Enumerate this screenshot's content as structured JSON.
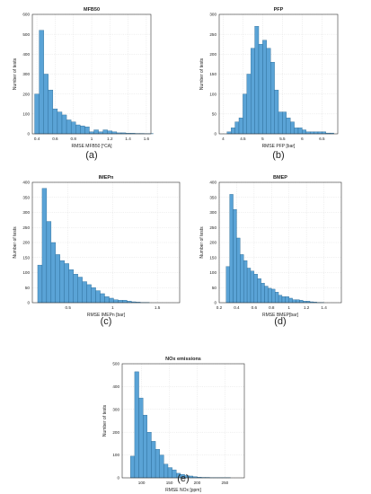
{
  "figure": {
    "bar_color": "#5aa3d6",
    "bar_edge_color": "#1f5f8a"
  },
  "chart_data": [
    {
      "id": "a",
      "caption": "(a)",
      "type": "bar",
      "title": "MFB50",
      "xlabel": "RMSE MFB50 [°CA]",
      "ylabel": "Number of tests",
      "xlim": [
        0.35,
        1.65
      ],
      "ylim": [
        0,
        600
      ],
      "xticks": [
        0.4,
        0.6,
        0.8,
        1,
        1.2,
        1.4,
        1.6
      ],
      "xtick_labels": [
        "0.4",
        "0.6",
        "0.8",
        "1",
        "1.2",
        "1.4",
        "1.6"
      ],
      "yticks": [
        0,
        100,
        200,
        300,
        400,
        500,
        600
      ],
      "bins": {
        "start": 0.375,
        "width": 0.05
      },
      "values": [
        200,
        520,
        300,
        220,
        125,
        110,
        95,
        70,
        60,
        45,
        40,
        35,
        10,
        20,
        10,
        20,
        15,
        10,
        5,
        5,
        3,
        3,
        2,
        2,
        1,
        1
      ]
    },
    {
      "id": "b",
      "caption": "(b)",
      "type": "bar",
      "title": "PFP",
      "xlabel": "RMSE PFP [bar]",
      "ylabel": "Number of tests",
      "xlim": [
        3.9,
        6.9
      ],
      "ylim": [
        0,
        300
      ],
      "xticks": [
        4,
        4.5,
        5,
        5.5,
        6,
        6.5
      ],
      "xtick_labels": [
        "4",
        "4.5",
        "5",
        "5.5",
        "6",
        "6.5"
      ],
      "yticks": [
        0,
        50,
        100,
        150,
        200,
        250,
        300
      ],
      "bins": {
        "start": 4.1,
        "width": 0.1
      },
      "values": [
        5,
        15,
        30,
        40,
        100,
        150,
        215,
        270,
        225,
        235,
        215,
        180,
        110,
        55,
        55,
        40,
        30,
        15,
        15,
        10,
        5,
        5,
        5,
        5,
        5,
        2,
        2
      ]
    },
    {
      "id": "c",
      "caption": "(c)",
      "type": "bar",
      "title": "IMEPn",
      "xlabel": "RMSE IMEPn [bar]",
      "ylabel": "Number of tests",
      "xlim": [
        0.1,
        1.75
      ],
      "ylim": [
        0,
        400
      ],
      "xticks": [
        0.5,
        1,
        1.5
      ],
      "xtick_labels": [
        "0.5",
        "1",
        "1.5"
      ],
      "yticks": [
        0,
        50,
        100,
        150,
        200,
        250,
        300,
        350,
        400
      ],
      "bins": {
        "start": 0.16,
        "width": 0.05
      },
      "values": [
        125,
        380,
        270,
        200,
        160,
        140,
        130,
        110,
        95,
        85,
        70,
        60,
        50,
        40,
        30,
        20,
        15,
        10,
        8,
        8,
        5,
        3,
        2,
        1,
        1
      ]
    },
    {
      "id": "d",
      "caption": "(d)",
      "type": "bar",
      "title": "BMEP",
      "xlabel": "RMSE BMEP[bar]",
      "ylabel": "Number of tests",
      "xlim": [
        0.2,
        1.6
      ],
      "ylim": [
        0,
        400
      ],
      "xticks": [
        0.2,
        0.4,
        0.6,
        0.8,
        1,
        1.2,
        1.4
      ],
      "xtick_labels": [
        "0.2",
        "0.4",
        "0.6",
        "0.8",
        "1",
        "1.2",
        "1.4"
      ],
      "yticks": [
        0,
        50,
        100,
        150,
        200,
        250,
        300,
        350,
        400
      ],
      "bins": {
        "start": 0.28,
        "width": 0.04
      },
      "values": [
        120,
        360,
        310,
        215,
        160,
        140,
        115,
        105,
        95,
        80,
        65,
        55,
        48,
        45,
        35,
        25,
        20,
        20,
        15,
        10,
        10,
        8,
        5,
        5,
        3,
        2,
        1,
        1
      ]
    },
    {
      "id": "e",
      "caption": "(e)",
      "type": "bar",
      "title": "NOx emissions",
      "xlabel": "RMSE NOx [ppm]",
      "ylabel": "Number of tests",
      "xlim": [
        65,
        285
      ],
      "ylim": [
        0,
        500
      ],
      "xticks": [
        100,
        150,
        200,
        250
      ],
      "xtick_labels": [
        "100",
        "150",
        "200",
        "250"
      ],
      "yticks": [
        0,
        100,
        200,
        300,
        400,
        500
      ],
      "bins": {
        "start": 80,
        "width": 7.5
      },
      "values": [
        95,
        465,
        350,
        275,
        200,
        160,
        125,
        100,
        60,
        45,
        35,
        20,
        15,
        10,
        8,
        5,
        3,
        2,
        2,
        1,
        1,
        1,
        1,
        1
      ]
    }
  ]
}
